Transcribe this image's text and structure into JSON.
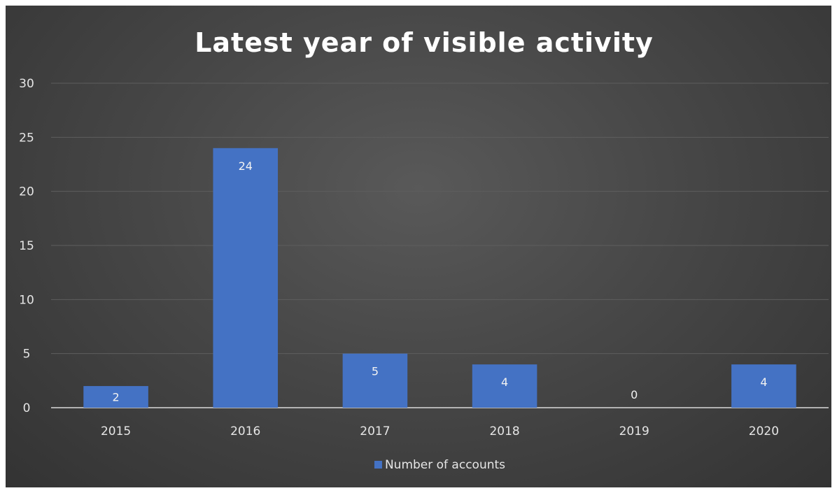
{
  "chart_data": {
    "type": "bar",
    "title": "Latest year of visible activity",
    "categories": [
      "2015",
      "2016",
      "2017",
      "2018",
      "2019",
      "2020"
    ],
    "series": [
      {
        "name": "Number of accounts",
        "values": [
          2,
          24,
          5,
          4,
          0,
          4
        ],
        "color": "#4472C4"
      }
    ],
    "data_labels": [
      "2",
      "24",
      "5",
      "4",
      "0",
      "4"
    ],
    "y_ticks": [
      "0",
      "5",
      "10",
      "15",
      "20",
      "25",
      "30"
    ],
    "ylim": [
      0,
      30
    ],
    "grid": true,
    "legend_position": "bottom",
    "background_color": "#404040",
    "gridline_color": "#5e5e5e",
    "axis_color": "#d9d9d9"
  }
}
